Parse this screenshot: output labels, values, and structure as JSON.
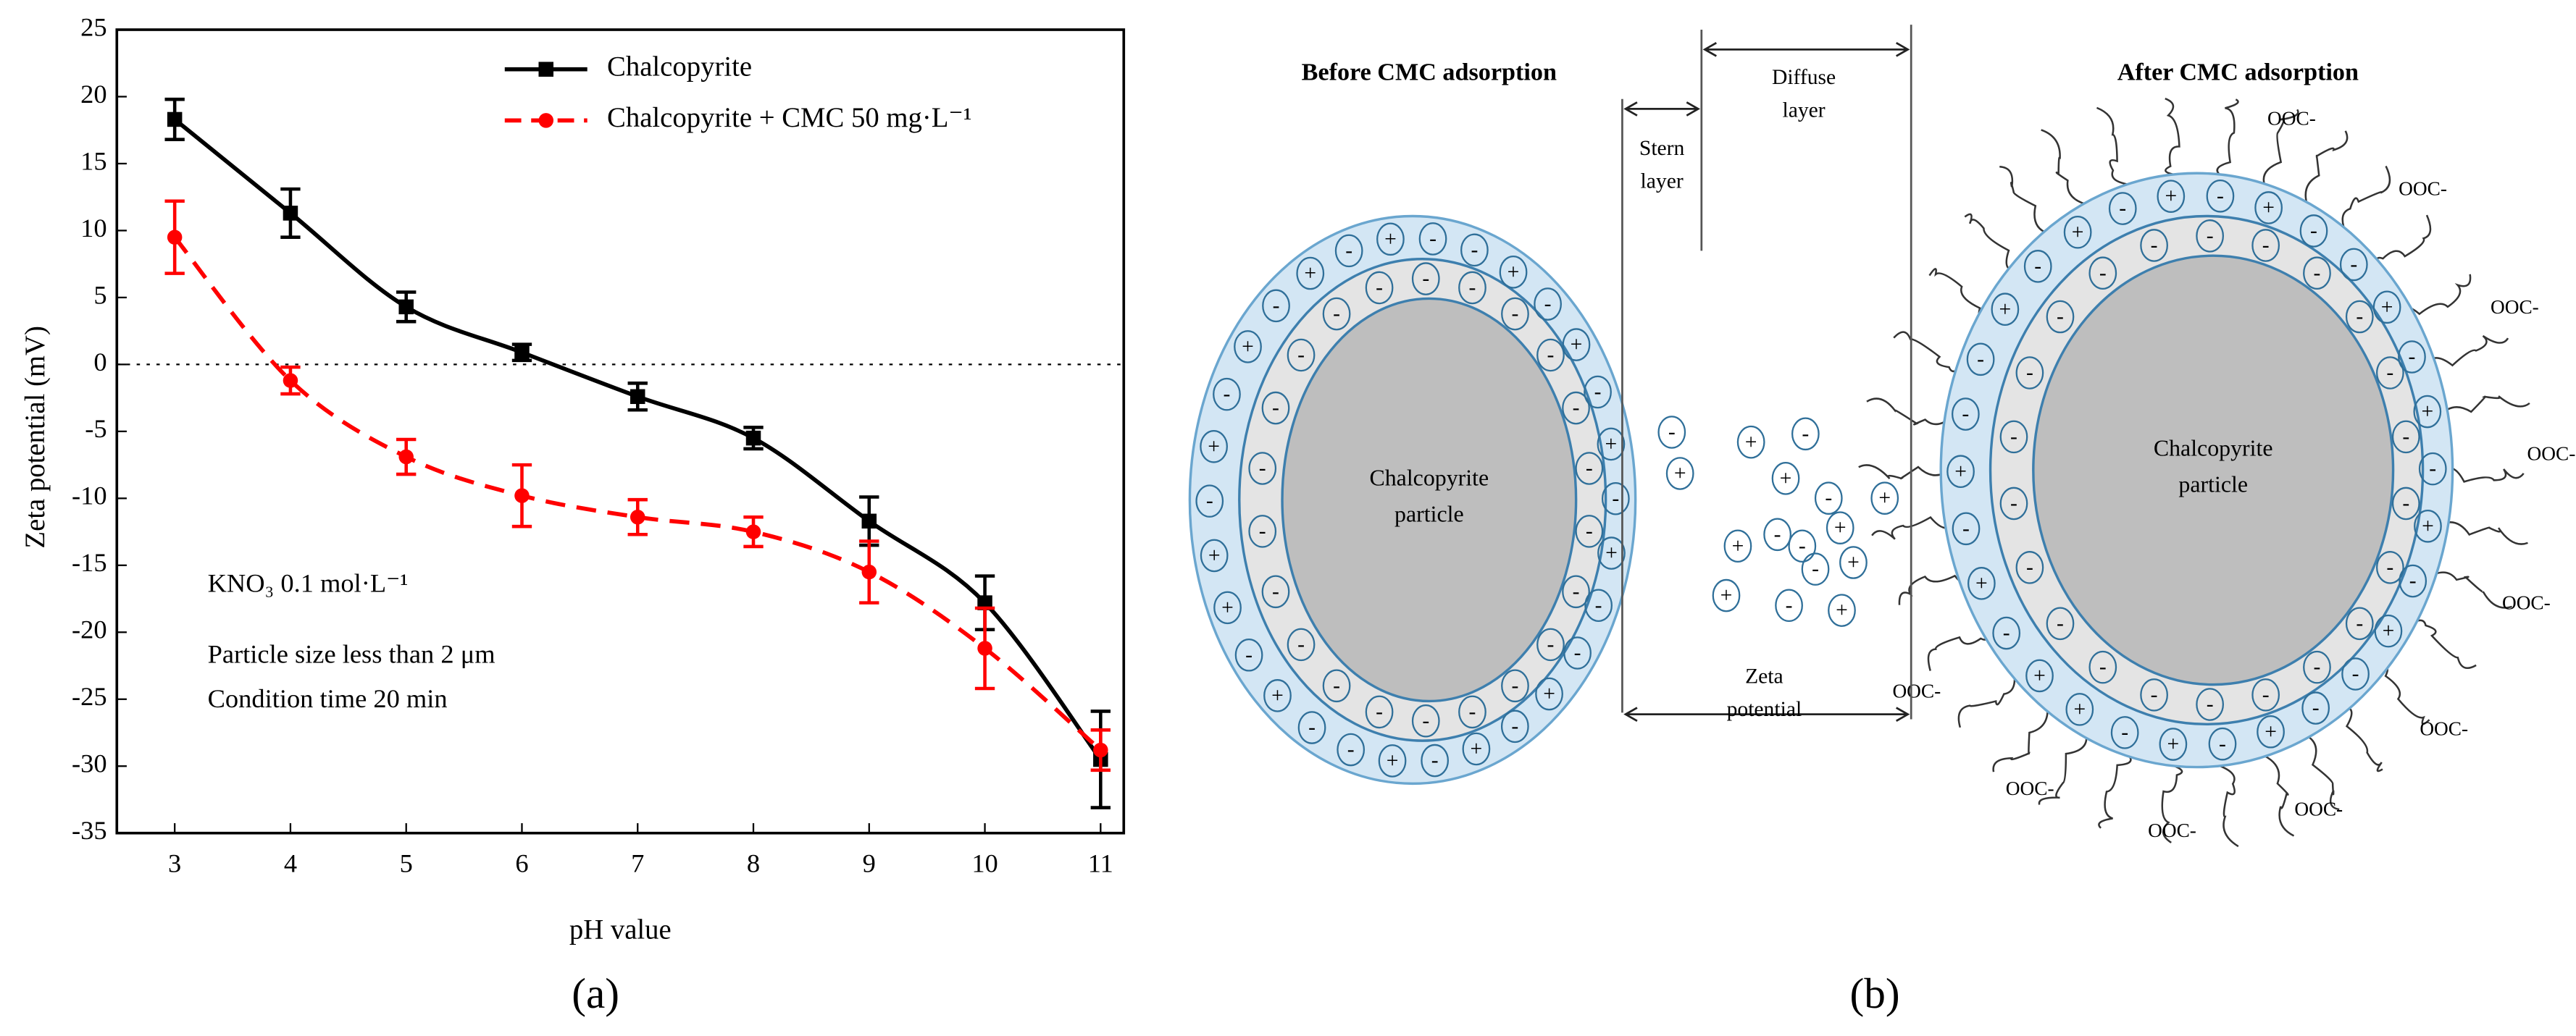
{
  "chart_data": {
    "type": "line",
    "x_label": "pH value",
    "y_label": "Zeta potential (mV)",
    "x": [
      3,
      4,
      5,
      6,
      7,
      8,
      9,
      10,
      11
    ],
    "series": [
      {
        "name": "Chalcopyrite",
        "color": "#000000",
        "marker": "square",
        "dash": false,
        "values": [
          18.3,
          11.3,
          4.3,
          0.9,
          -2.4,
          -5.5,
          -11.7,
          -17.8,
          -29.5
        ],
        "errors": [
          1.5,
          1.8,
          1.1,
          0.6,
          1.0,
          0.8,
          1.8,
          2.0,
          3.6
        ]
      },
      {
        "name": "Chalcopyrite +  CMC 50 mg·L⁻¹",
        "color": "#ff0000",
        "marker": "circle",
        "dash": true,
        "values": [
          9.5,
          -1.2,
          -6.9,
          -9.8,
          -11.4,
          -12.5,
          -15.5,
          -21.2,
          -28.8
        ],
        "errors": [
          2.7,
          1.0,
          1.3,
          2.3,
          1.3,
          1.1,
          2.3,
          3.0,
          1.5
        ]
      }
    ],
    "xlim": [
      2.5,
      11.2
    ],
    "ylim": [
      -35,
      25
    ],
    "xticks": [
      3,
      4,
      5,
      6,
      7,
      8,
      9,
      10,
      11
    ],
    "yticks": [
      -35,
      -30,
      -25,
      -20,
      -15,
      -10,
      -5,
      0,
      5,
      10,
      15,
      20,
      25
    ],
    "reference_line": 0,
    "legend": "top-right",
    "annotations": [
      "KNO₃ 0.1 mol·L⁻¹",
      "Particle size less than 2 μm",
      "Condition time 20 min"
    ],
    "panel_label": "(a)"
  },
  "diagram": {
    "panel_label": "(b)",
    "before_title": "Before CMC adsorption",
    "after_title": "After CMC adsorption",
    "stern_label": [
      "Stern",
      "layer"
    ],
    "diffuse_label": [
      "Diffuse",
      "layer"
    ],
    "zeta_label": [
      "Zeta",
      "potential"
    ],
    "left_particle_label": [
      "Chalcopyrite",
      "particle"
    ],
    "right_particle_label": [
      "Chalcopyrite",
      "particle"
    ],
    "left_inner": [
      "-",
      "-",
      "-",
      "-",
      "-",
      "-",
      "-",
      "-",
      "-",
      "-",
      "-",
      "-",
      "-",
      "-",
      "-",
      "-",
      "-",
      "-",
      "-",
      "-",
      "-",
      "-"
    ],
    "left_outer": [
      "+",
      "-",
      "-",
      "+",
      "-",
      "+",
      "-",
      "+",
      "-",
      "-",
      "+",
      "-",
      "+",
      "+",
      "-",
      "+",
      "-",
      "+",
      "-",
      "+",
      "-",
      "+",
      "-",
      "-",
      "+",
      "-",
      "+",
      "-",
      "+",
      "-"
    ],
    "right_inner": [
      "-",
      "-",
      "-",
      "-",
      "-",
      "-",
      "-",
      "-",
      "-",
      "-",
      "-",
      "-",
      "-",
      "-",
      "-",
      "-",
      "-",
      "-",
      "-",
      "-",
      "-",
      "-"
    ],
    "right_outer": [
      "+",
      "-",
      "+",
      "-",
      "-",
      "+",
      "-",
      "+",
      "-",
      "+",
      "+",
      "-",
      "+",
      "-",
      "+",
      "-",
      "-",
      "+",
      "-",
      "+",
      "-",
      "+",
      "-",
      "+",
      "-",
      "-",
      "+",
      "-",
      "+",
      "-"
    ],
    "diffuse_ions": [
      "-",
      "+",
      "-",
      "+",
      "+",
      "+",
      "-",
      "+",
      "-",
      "-",
      "+",
      "+",
      "-",
      "+",
      "-",
      "+"
    ],
    "carboxyl": [
      "OOC-",
      "OOC-",
      "OOC-",
      "OOC-",
      "OOC-",
      "OOC-",
      "OOC-",
      "OOC-",
      "OOC-",
      "OOC-"
    ]
  }
}
